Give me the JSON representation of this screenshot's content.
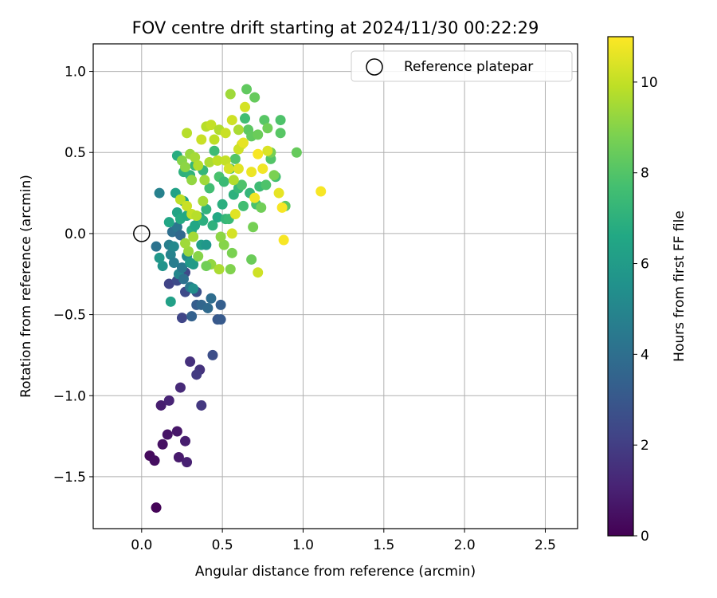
{
  "chart_data": {
    "type": "scatter",
    "title": "FOV centre drift starting at 2024/11/30 00:22:29",
    "xlabel": "Angular distance from reference (arcmin)",
    "ylabel": "Rotation from reference (arcmin)",
    "xlim": [
      -0.3,
      2.7
    ],
    "ylim": [
      -1.82,
      1.17
    ],
    "xticks": [
      0.0,
      0.5,
      1.0,
      1.5,
      2.0,
      2.5
    ],
    "xtick_labels": [
      "0.0",
      "0.5",
      "1.0",
      "1.5",
      "2.0",
      "2.5"
    ],
    "yticks": [
      -1.5,
      -1.0,
      -0.5,
      0.0,
      0.5,
      1.0
    ],
    "ytick_labels": [
      "−1.5",
      "−1.0",
      "−0.5",
      "0.0",
      "0.5",
      "1.0"
    ],
    "grid": true,
    "legend": {
      "placement": "top-right",
      "entries": [
        "Reference platepar"
      ]
    },
    "reference_point": {
      "x": 0.0,
      "y": 0.0,
      "label": "Reference platepar"
    },
    "colorbar": {
      "label": "Hours from first FF file",
      "range": [
        0,
        11
      ],
      "ticks": [
        0,
        2,
        4,
        6,
        8,
        10
      ],
      "tick_labels": [
        "0",
        "2",
        "4",
        "6",
        "8",
        "10"
      ],
      "colormap": "viridis"
    },
    "series": [
      {
        "points": [
          [
            0.09,
            -1.69,
            0.1
          ],
          [
            0.05,
            -1.37,
            0.3
          ],
          [
            0.08,
            -1.4,
            0.4
          ],
          [
            0.13,
            -1.3,
            0.5
          ],
          [
            0.16,
            -1.24,
            0.6
          ],
          [
            0.22,
            -1.22,
            0.7
          ],
          [
            0.23,
            -1.38,
            0.8
          ],
          [
            0.27,
            -1.28,
            0.9
          ],
          [
            0.28,
            -1.41,
            1.0
          ],
          [
            0.12,
            -1.06,
            0.9
          ],
          [
            0.17,
            -1.03,
            1.1
          ],
          [
            0.24,
            -0.95,
            1.3
          ],
          [
            0.3,
            -0.79,
            1.5
          ],
          [
            0.36,
            -0.84,
            1.6
          ],
          [
            0.34,
            -0.87,
            1.9
          ],
          [
            0.37,
            -1.06,
            1.8
          ],
          [
            0.44,
            -0.75,
            2.6
          ],
          [
            0.25,
            -0.52,
            2.3
          ],
          [
            0.17,
            -0.31,
            2.2
          ],
          [
            0.22,
            -0.29,
            2.5
          ],
          [
            0.27,
            -0.24,
            2.4
          ],
          [
            0.27,
            -0.36,
            2.5
          ],
          [
            0.34,
            -0.36,
            2.7
          ],
          [
            0.47,
            -0.53,
            3.0
          ],
          [
            0.49,
            -0.53,
            3.1
          ],
          [
            0.31,
            -0.51,
            3.4
          ],
          [
            0.34,
            -0.44,
            3.2
          ],
          [
            0.37,
            -0.44,
            3.6
          ],
          [
            0.41,
            -0.46,
            3.8
          ],
          [
            0.43,
            -0.4,
            3.9
          ],
          [
            0.49,
            -0.44,
            3.3
          ],
          [
            0.13,
            -0.2,
            5.6
          ],
          [
            0.09,
            -0.08,
            4.2
          ],
          [
            0.11,
            -0.15,
            5.8
          ],
          [
            0.17,
            -0.07,
            4.7
          ],
          [
            0.18,
            -0.13,
            4.9
          ],
          [
            0.19,
            0.01,
            4.0
          ],
          [
            0.2,
            -0.08,
            5.1
          ],
          [
            0.2,
            -0.18,
            4.6
          ],
          [
            0.22,
            0.04,
            4.3
          ],
          [
            0.24,
            -0.01,
            3.7
          ],
          [
            0.23,
            -0.25,
            5.0
          ],
          [
            0.25,
            -0.21,
            4.4
          ],
          [
            0.26,
            -0.28,
            4.1
          ],
          [
            0.28,
            -0.14,
            5.3
          ],
          [
            0.3,
            -0.33,
            4.5
          ],
          [
            0.32,
            -0.34,
            5.4
          ],
          [
            0.3,
            -0.18,
            5.9
          ],
          [
            0.32,
            -0.19,
            6.0
          ],
          [
            0.18,
            -0.42,
            6.2
          ],
          [
            0.37,
            -0.07,
            6.1
          ],
          [
            0.4,
            -0.07,
            5.8
          ],
          [
            0.11,
            0.25,
            4.8
          ],
          [
            0.17,
            0.07,
            6.5
          ],
          [
            0.21,
            0.25,
            6.3
          ],
          [
            0.22,
            0.13,
            6.4
          ],
          [
            0.24,
            0.09,
            6.7
          ],
          [
            0.26,
            0.2,
            6.2
          ],
          [
            0.28,
            0.11,
            6.6
          ],
          [
            0.31,
            0.02,
            6.8
          ],
          [
            0.33,
            0.05,
            6.5
          ],
          [
            0.36,
            0.1,
            6.0
          ],
          [
            0.38,
            0.08,
            6.9
          ],
          [
            0.4,
            0.15,
            7.1
          ],
          [
            0.44,
            0.05,
            7.0
          ],
          [
            0.47,
            0.1,
            6.6
          ],
          [
            0.5,
            0.18,
            6.9
          ],
          [
            0.52,
            0.09,
            7.2
          ],
          [
            0.54,
            0.09,
            7.4
          ],
          [
            0.57,
            0.24,
            7.0
          ],
          [
            0.6,
            0.28,
            7.3
          ],
          [
            0.63,
            0.17,
            7.6
          ],
          [
            0.67,
            0.25,
            7.2
          ],
          [
            0.71,
            0.18,
            7.8
          ],
          [
            0.73,
            0.29,
            7.5
          ],
          [
            0.77,
            0.3,
            7.9
          ],
          [
            0.8,
            0.46,
            8.0
          ],
          [
            0.83,
            0.35,
            7.7
          ],
          [
            0.86,
            0.62,
            8.1
          ],
          [
            0.89,
            0.17,
            8.2
          ],
          [
            0.86,
            0.7,
            7.9
          ],
          [
            0.96,
            0.5,
            8.4
          ],
          [
            0.22,
            0.48,
            6.8
          ],
          [
            0.26,
            0.38,
            7.0
          ],
          [
            0.3,
            0.36,
            7.1
          ],
          [
            0.33,
            0.42,
            7.3
          ],
          [
            0.38,
            0.39,
            7.2
          ],
          [
            0.42,
            0.28,
            7.6
          ],
          [
            0.45,
            0.51,
            7.5
          ],
          [
            0.48,
            0.35,
            7.8
          ],
          [
            0.51,
            0.32,
            7.4
          ],
          [
            0.55,
            0.4,
            7.7
          ],
          [
            0.58,
            0.46,
            8.0
          ],
          [
            0.62,
            0.3,
            7.9
          ],
          [
            0.64,
            0.71,
            7.6
          ],
          [
            0.66,
            0.64,
            8.2
          ],
          [
            0.68,
            0.6,
            8.3
          ],
          [
            0.7,
            0.84,
            8.4
          ],
          [
            0.72,
            0.61,
            8.5
          ],
          [
            0.76,
            0.7,
            8.1
          ],
          [
            0.78,
            0.65,
            8.6
          ],
          [
            0.8,
            0.5,
            8.7
          ],
          [
            0.82,
            0.36,
            8.8
          ],
          [
            0.74,
            0.16,
            8.6
          ],
          [
            0.69,
            0.04,
            8.7
          ],
          [
            0.68,
            -0.16,
            8.5
          ],
          [
            0.55,
            -0.22,
            8.9
          ],
          [
            0.56,
            -0.12,
            8.8
          ],
          [
            0.51,
            -0.07,
            9.0
          ],
          [
            0.49,
            -0.02,
            9.1
          ],
          [
            0.43,
            -0.19,
            9.2
          ],
          [
            0.4,
            -0.2,
            8.6
          ],
          [
            0.35,
            -0.14,
            9.0
          ],
          [
            0.29,
            -0.11,
            9.3
          ],
          [
            0.27,
            -0.06,
            9.4
          ],
          [
            0.32,
            -0.02,
            9.5
          ],
          [
            0.48,
            -0.22,
            9.6
          ],
          [
            0.72,
            -0.24,
            10.2
          ],
          [
            0.65,
            0.89,
            8.3
          ],
          [
            0.55,
            0.86,
            9.4
          ],
          [
            0.64,
            0.78,
            10.3
          ],
          [
            0.4,
            0.66,
            9.8
          ],
          [
            0.43,
            0.67,
            10.0
          ],
          [
            0.45,
            0.58,
            9.9
          ],
          [
            0.48,
            0.64,
            9.7
          ],
          [
            0.52,
            0.62,
            10.1
          ],
          [
            0.56,
            0.7,
            10.2
          ],
          [
            0.6,
            0.64,
            9.6
          ],
          [
            0.62,
            0.55,
            10.4
          ],
          [
            0.37,
            0.58,
            10.1
          ],
          [
            0.28,
            0.62,
            9.8
          ],
          [
            0.3,
            0.49,
            9.3
          ],
          [
            0.33,
            0.47,
            9.5
          ],
          [
            0.35,
            0.42,
            9.7
          ],
          [
            0.25,
            0.45,
            9.0
          ],
          [
            0.27,
            0.41,
            9.1
          ],
          [
            0.31,
            0.33,
            9.2
          ],
          [
            0.39,
            0.33,
            9.4
          ],
          [
            0.42,
            0.44,
            9.6
          ],
          [
            0.47,
            0.45,
            9.9
          ],
          [
            0.52,
            0.45,
            10.0
          ],
          [
            0.54,
            0.4,
            10.3
          ],
          [
            0.57,
            0.33,
            9.7
          ],
          [
            0.6,
            0.4,
            10.5
          ],
          [
            0.6,
            0.52,
            10.2
          ],
          [
            0.63,
            0.56,
            10.6
          ],
          [
            0.68,
            0.38,
            10.7
          ],
          [
            0.7,
            0.22,
            10.8
          ],
          [
            0.72,
            0.49,
            10.9
          ],
          [
            0.75,
            0.4,
            10.8
          ],
          [
            0.78,
            0.51,
            10.4
          ],
          [
            0.85,
            0.25,
            10.6
          ],
          [
            0.87,
            0.16,
            10.9
          ],
          [
            0.88,
            -0.04,
            10.9
          ],
          [
            1.11,
            0.26,
            10.9
          ],
          [
            0.58,
            0.12,
            10.5
          ],
          [
            0.56,
            0.0,
            10.3
          ],
          [
            0.31,
            0.12,
            10.0
          ],
          [
            0.34,
            0.11,
            9.8
          ],
          [
            0.38,
            0.2,
            9.5
          ],
          [
            0.24,
            0.21,
            9.9
          ],
          [
            0.28,
            0.17,
            10.1
          ]
        ]
      }
    ]
  }
}
